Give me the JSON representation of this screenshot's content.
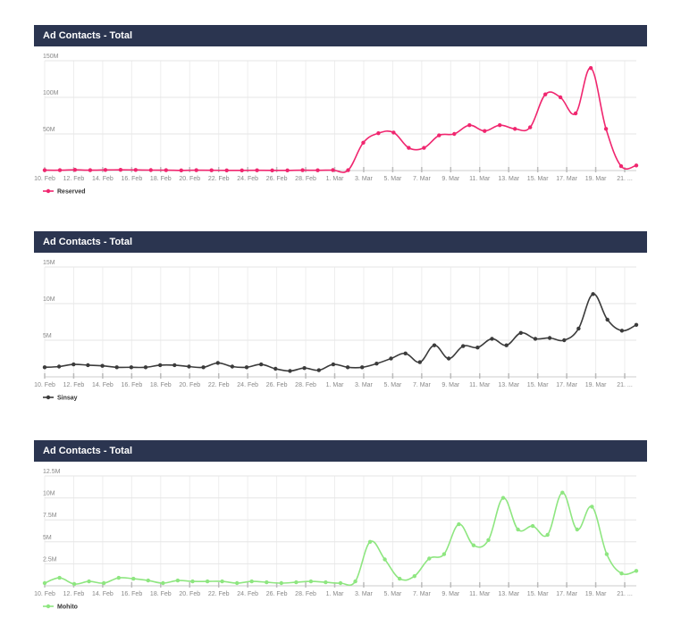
{
  "charts": [
    {
      "title": "Ad Contacts - Total",
      "color": "#f0266f",
      "chart_data": {
        "type": "line",
        "ylim": [
          0,
          150
        ],
        "y_ticks": [
          {
            "v": 150,
            "label": "150M"
          },
          {
            "v": 100,
            "label": "100M"
          },
          {
            "v": 50,
            "label": "50M"
          }
        ],
        "x_labels": [
          "10. Feb",
          "12. Feb",
          "14. Feb",
          "16. Feb",
          "18. Feb",
          "20. Feb",
          "22. Feb",
          "24. Feb",
          "26. Feb",
          "28. Feb",
          "1. Mar",
          "3. Mar",
          "5. Mar",
          "7. Mar",
          "9. Mar",
          "11. Mar",
          "13. Mar",
          "15. Mar",
          "17. Mar",
          "19. Mar",
          "21. ..."
        ],
        "series": [
          {
            "name": "Reserved",
            "values": [
              0.5,
              0.5,
              1,
              0.5,
              0.8,
              1,
              0.8,
              0.6,
              0.5,
              0.3,
              0.5,
              0.4,
              0.2,
              0.3,
              0.4,
              0.3,
              0.2,
              0.5,
              0.4,
              0.6,
              0.5,
              38,
              51,
              52,
              31,
              31,
              48,
              50,
              62,
              54,
              62,
              57,
              59,
              104,
              100,
              78,
              140,
              57,
              6,
              7
            ]
          }
        ]
      }
    },
    {
      "title": "Ad Contacts - Total",
      "color": "#3b3b3b",
      "chart_data": {
        "type": "line",
        "ylim": [
          0,
          15
        ],
        "y_ticks": [
          {
            "v": 15,
            "label": "15M"
          },
          {
            "v": 10,
            "label": "10M"
          },
          {
            "v": 5,
            "label": "5M"
          }
        ],
        "x_labels": [
          "10. Feb",
          "12. Feb",
          "14. Feb",
          "16. Feb",
          "18. Feb",
          "20. Feb",
          "22. Feb",
          "24. Feb",
          "26. Feb",
          "28. Feb",
          "1. Mar",
          "3. Mar",
          "5. Mar",
          "7. Mar",
          "9. Mar",
          "11. Mar",
          "13. Mar",
          "15. Mar",
          "17. Mar",
          "19. Mar",
          "21. ..."
        ],
        "series": [
          {
            "name": "Sinsay",
            "values": [
              1.3,
              1.4,
              1.7,
              1.6,
              1.5,
              1.3,
              1.3,
              1.3,
              1.6,
              1.6,
              1.4,
              1.3,
              1.9,
              1.4,
              1.3,
              1.7,
              1.1,
              0.8,
              1.2,
              0.9,
              1.7,
              1.3,
              1.3,
              1.8,
              2.5,
              3.2,
              2.0,
              4.3,
              2.5,
              4.2,
              4.0,
              5.2,
              4.3,
              6.0,
              5.2,
              5.3,
              5.0,
              6.6,
              11.3,
              7.8,
              6.3,
              7.1
            ]
          }
        ]
      }
    },
    {
      "title": "Ad Contacts - Total",
      "color": "#8ee680",
      "chart_data": {
        "type": "line",
        "ylim": [
          0,
          12.5
        ],
        "y_ticks": [
          {
            "v": 12.5,
            "label": "12.5M"
          },
          {
            "v": 10,
            "label": "10M"
          },
          {
            "v": 7.5,
            "label": "7.5M"
          },
          {
            "v": 5,
            "label": "5M"
          },
          {
            "v": 2.5,
            "label": "2.5M"
          }
        ],
        "x_labels": [
          "10. Feb",
          "12. Feb",
          "14. Feb",
          "16. Feb",
          "18. Feb",
          "20. Feb",
          "22. Feb",
          "24. Feb",
          "26. Feb",
          "28. Feb",
          "1. Mar",
          "3. Mar",
          "5. Mar",
          "7. Mar",
          "9. Mar",
          "11. Mar",
          "13. Mar",
          "15. Mar",
          "17. Mar",
          "19. Mar",
          "21. ..."
        ],
        "series": [
          {
            "name": "Mohito",
            "values": [
              0.3,
              0.9,
              0.2,
              0.5,
              0.3,
              0.9,
              0.8,
              0.6,
              0.3,
              0.6,
              0.5,
              0.5,
              0.5,
              0.3,
              0.5,
              0.4,
              0.3,
              0.4,
              0.5,
              0.4,
              0.3,
              0.5,
              5.0,
              3.0,
              0.8,
              1.1,
              3.1,
              3.6,
              7.0,
              4.6,
              5.2,
              10.0,
              6.4,
              6.8,
              5.8,
              10.6,
              6.4,
              9.0,
              3.6,
              1.4,
              1.7
            ]
          }
        ]
      }
    }
  ]
}
